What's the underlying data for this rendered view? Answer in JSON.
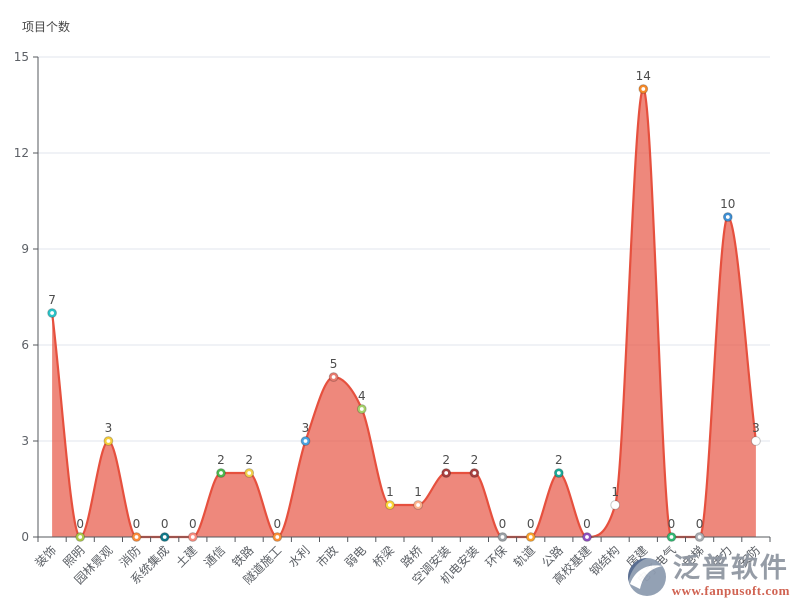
{
  "chart_data": {
    "type": "area",
    "title": "项目个数",
    "title_position": "top-left",
    "categories": [
      "装饰",
      "照明",
      "园林景观",
      "消防",
      "系统集成",
      "土建",
      "通信",
      "铁路",
      "隧道施工",
      "水利",
      "市政",
      "弱电",
      "桥梁",
      "路桥",
      "空调安装",
      "机电安装",
      "环保",
      "轨道",
      "公路",
      "高校基建",
      "钢结构",
      "房建",
      "电子电气",
      "电梯",
      "电力",
      "安防"
    ],
    "values": [
      7,
      0,
      3,
      0,
      0,
      0,
      2,
      2,
      0,
      3,
      5,
      4,
      1,
      1,
      2,
      2,
      0,
      0,
      2,
      0,
      1,
      14,
      0,
      0,
      10,
      3
    ],
    "point_colors": [
      "#2bc4c9",
      "#adc94b",
      "#f7ce3a",
      "#fb8b3a",
      "#11798a",
      "#f98d80",
      "#4cb94e",
      "#f3d04b",
      "#fb9036",
      "#4aa3e0",
      "#e87b6f",
      "#a6d16a",
      "#fdd73a",
      "#ffb38d",
      "#a84040",
      "#a84040",
      "#9ba1a6",
      "#fba32c",
      "#1ba998",
      "#8f4fc0",
      "#ffffff",
      "#f68a2a",
      "#33b873",
      "#a9aeb4",
      "#3e8fd4",
      "#ffffff"
    ],
    "line_color": "#e6503e",
    "fill_color": "#e6503e",
    "fill_opacity": 0.68,
    "marker_style": "ring-with-white-center",
    "smooth": true,
    "grid": true,
    "legend": "none",
    "xlabel": "",
    "ylabel": "项目个数",
    "ylim": [
      0,
      15
    ],
    "yticks": [
      0,
      3,
      6,
      9,
      12,
      15
    ],
    "x_label_rotation": -45,
    "axis_color": "#55585e",
    "grid_color": "#e2e5ec",
    "tick_label_color": "#5c6066",
    "value_label_color": "#4d4d4d"
  },
  "watermark": {
    "brand": "泛普软件",
    "url": "www.fanpusoft.com",
    "brand_color": "#9097a2",
    "url_color": "#ce5b49",
    "logo_dark": "#53688d",
    "logo_light": "#8e9cb0"
  }
}
